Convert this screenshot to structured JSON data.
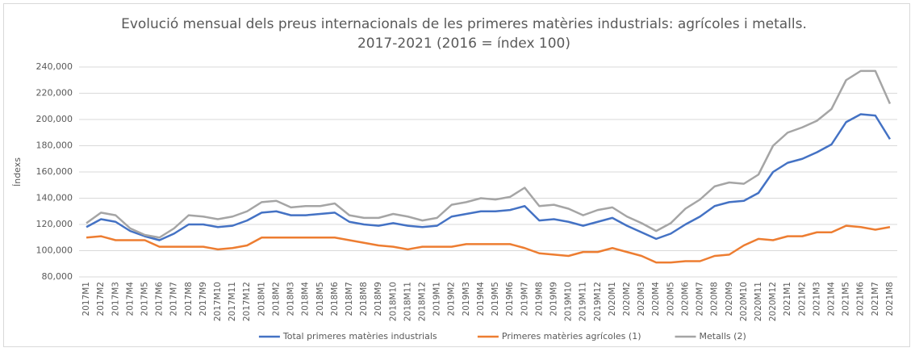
{
  "chart_data": {
    "type": "line",
    "title": "Evolució mensual dels preus internacionals de les primeres matèries industrials: agrícoles i metalls. 2017-2021 (2016 = índex 100)",
    "y_label": "Índexs",
    "categories": [
      "2017M1",
      "2017M2",
      "2017M3",
      "2017M4",
      "2017M5",
      "2017M6",
      "2017M7",
      "2017M8",
      "2017M9",
      "2017M10",
      "2017M11",
      "2017M12",
      "2018M1",
      "2018M2",
      "2018M3",
      "2018M4",
      "2018M5",
      "2018M6",
      "2018M7",
      "2018M8",
      "2018M9",
      "2018M10",
      "2018M11",
      "2018M12",
      "2019M1",
      "2019M2",
      "2019M3",
      "2019M4",
      "2019M5",
      "2019M6",
      "2019M7",
      "2019M8",
      "2019M9",
      "2019M10",
      "2019M11",
      "2019M12",
      "2020M1",
      "2020M2",
      "2020M3",
      "2020M4",
      "2020M5",
      "2020M6",
      "2020M7",
      "2020M8",
      "2020M9",
      "2020M10",
      "2020M11",
      "2020M12",
      "2021M1",
      "2021M2",
      "2021M3",
      "2021M4",
      "2021M5",
      "2021M6",
      "2021M7",
      "2021M8"
    ],
    "series": [
      {
        "name": "Total primeres matèries industrials",
        "color": "#4472c4",
        "values": [
          118,
          124,
          122,
          115,
          111,
          108,
          113,
          120,
          120,
          118,
          119,
          123,
          129,
          130,
          127,
          127,
          128,
          129,
          122,
          120,
          119,
          121,
          119,
          118,
          119,
          126,
          128,
          130,
          130,
          131,
          134,
          123,
          124,
          122,
          119,
          122,
          125,
          119,
          114,
          109,
          113,
          120,
          126,
          134,
          137,
          138,
          144,
          160,
          167,
          170,
          175,
          181,
          198,
          204,
          203,
          185
        ]
      },
      {
        "name": "Primeres matèries agrícoles (1)",
        "color": "#ed7d31",
        "values": [
          110,
          111,
          108,
          108,
          108,
          103,
          103,
          103,
          103,
          101,
          102,
          104,
          110,
          110,
          110,
          110,
          110,
          110,
          108,
          106,
          104,
          103,
          101,
          103,
          103,
          103,
          105,
          105,
          105,
          105,
          102,
          98,
          97,
          96,
          99,
          99,
          102,
          99,
          96,
          91,
          91,
          92,
          92,
          96,
          97,
          104,
          109,
          108,
          111,
          111,
          114,
          114,
          119,
          118,
          116,
          118
        ]
      },
      {
        "name": "Metalls (2)",
        "color": "#a5a5a5",
        "values": [
          121,
          129,
          127,
          117,
          112,
          110,
          117,
          127,
          126,
          124,
          126,
          130,
          137,
          138,
          133,
          134,
          134,
          136,
          127,
          125,
          125,
          128,
          126,
          123,
          125,
          135,
          137,
          140,
          139,
          141,
          148,
          134,
          135,
          132,
          127,
          131,
          133,
          126,
          121,
          115,
          121,
          132,
          139,
          149,
          152,
          151,
          158,
          180,
          190,
          194,
          199,
          208,
          230,
          237,
          237,
          212
        ]
      }
    ],
    "ylim": [
      80,
      240
    ],
    "yticks": [
      {
        "value": 80,
        "label": "80,000"
      },
      {
        "value": 100,
        "label": "100,000"
      },
      {
        "value": 120,
        "label": "120,000"
      },
      {
        "value": 140,
        "label": "140,000"
      },
      {
        "value": 160,
        "label": "160,000"
      },
      {
        "value": 180,
        "label": "180,000"
      },
      {
        "value": 200,
        "label": "200,000"
      },
      {
        "value": 220,
        "label": "220,000"
      },
      {
        "value": 240,
        "label": "240,000"
      }
    ],
    "grid": true,
    "legend": "bottom"
  }
}
